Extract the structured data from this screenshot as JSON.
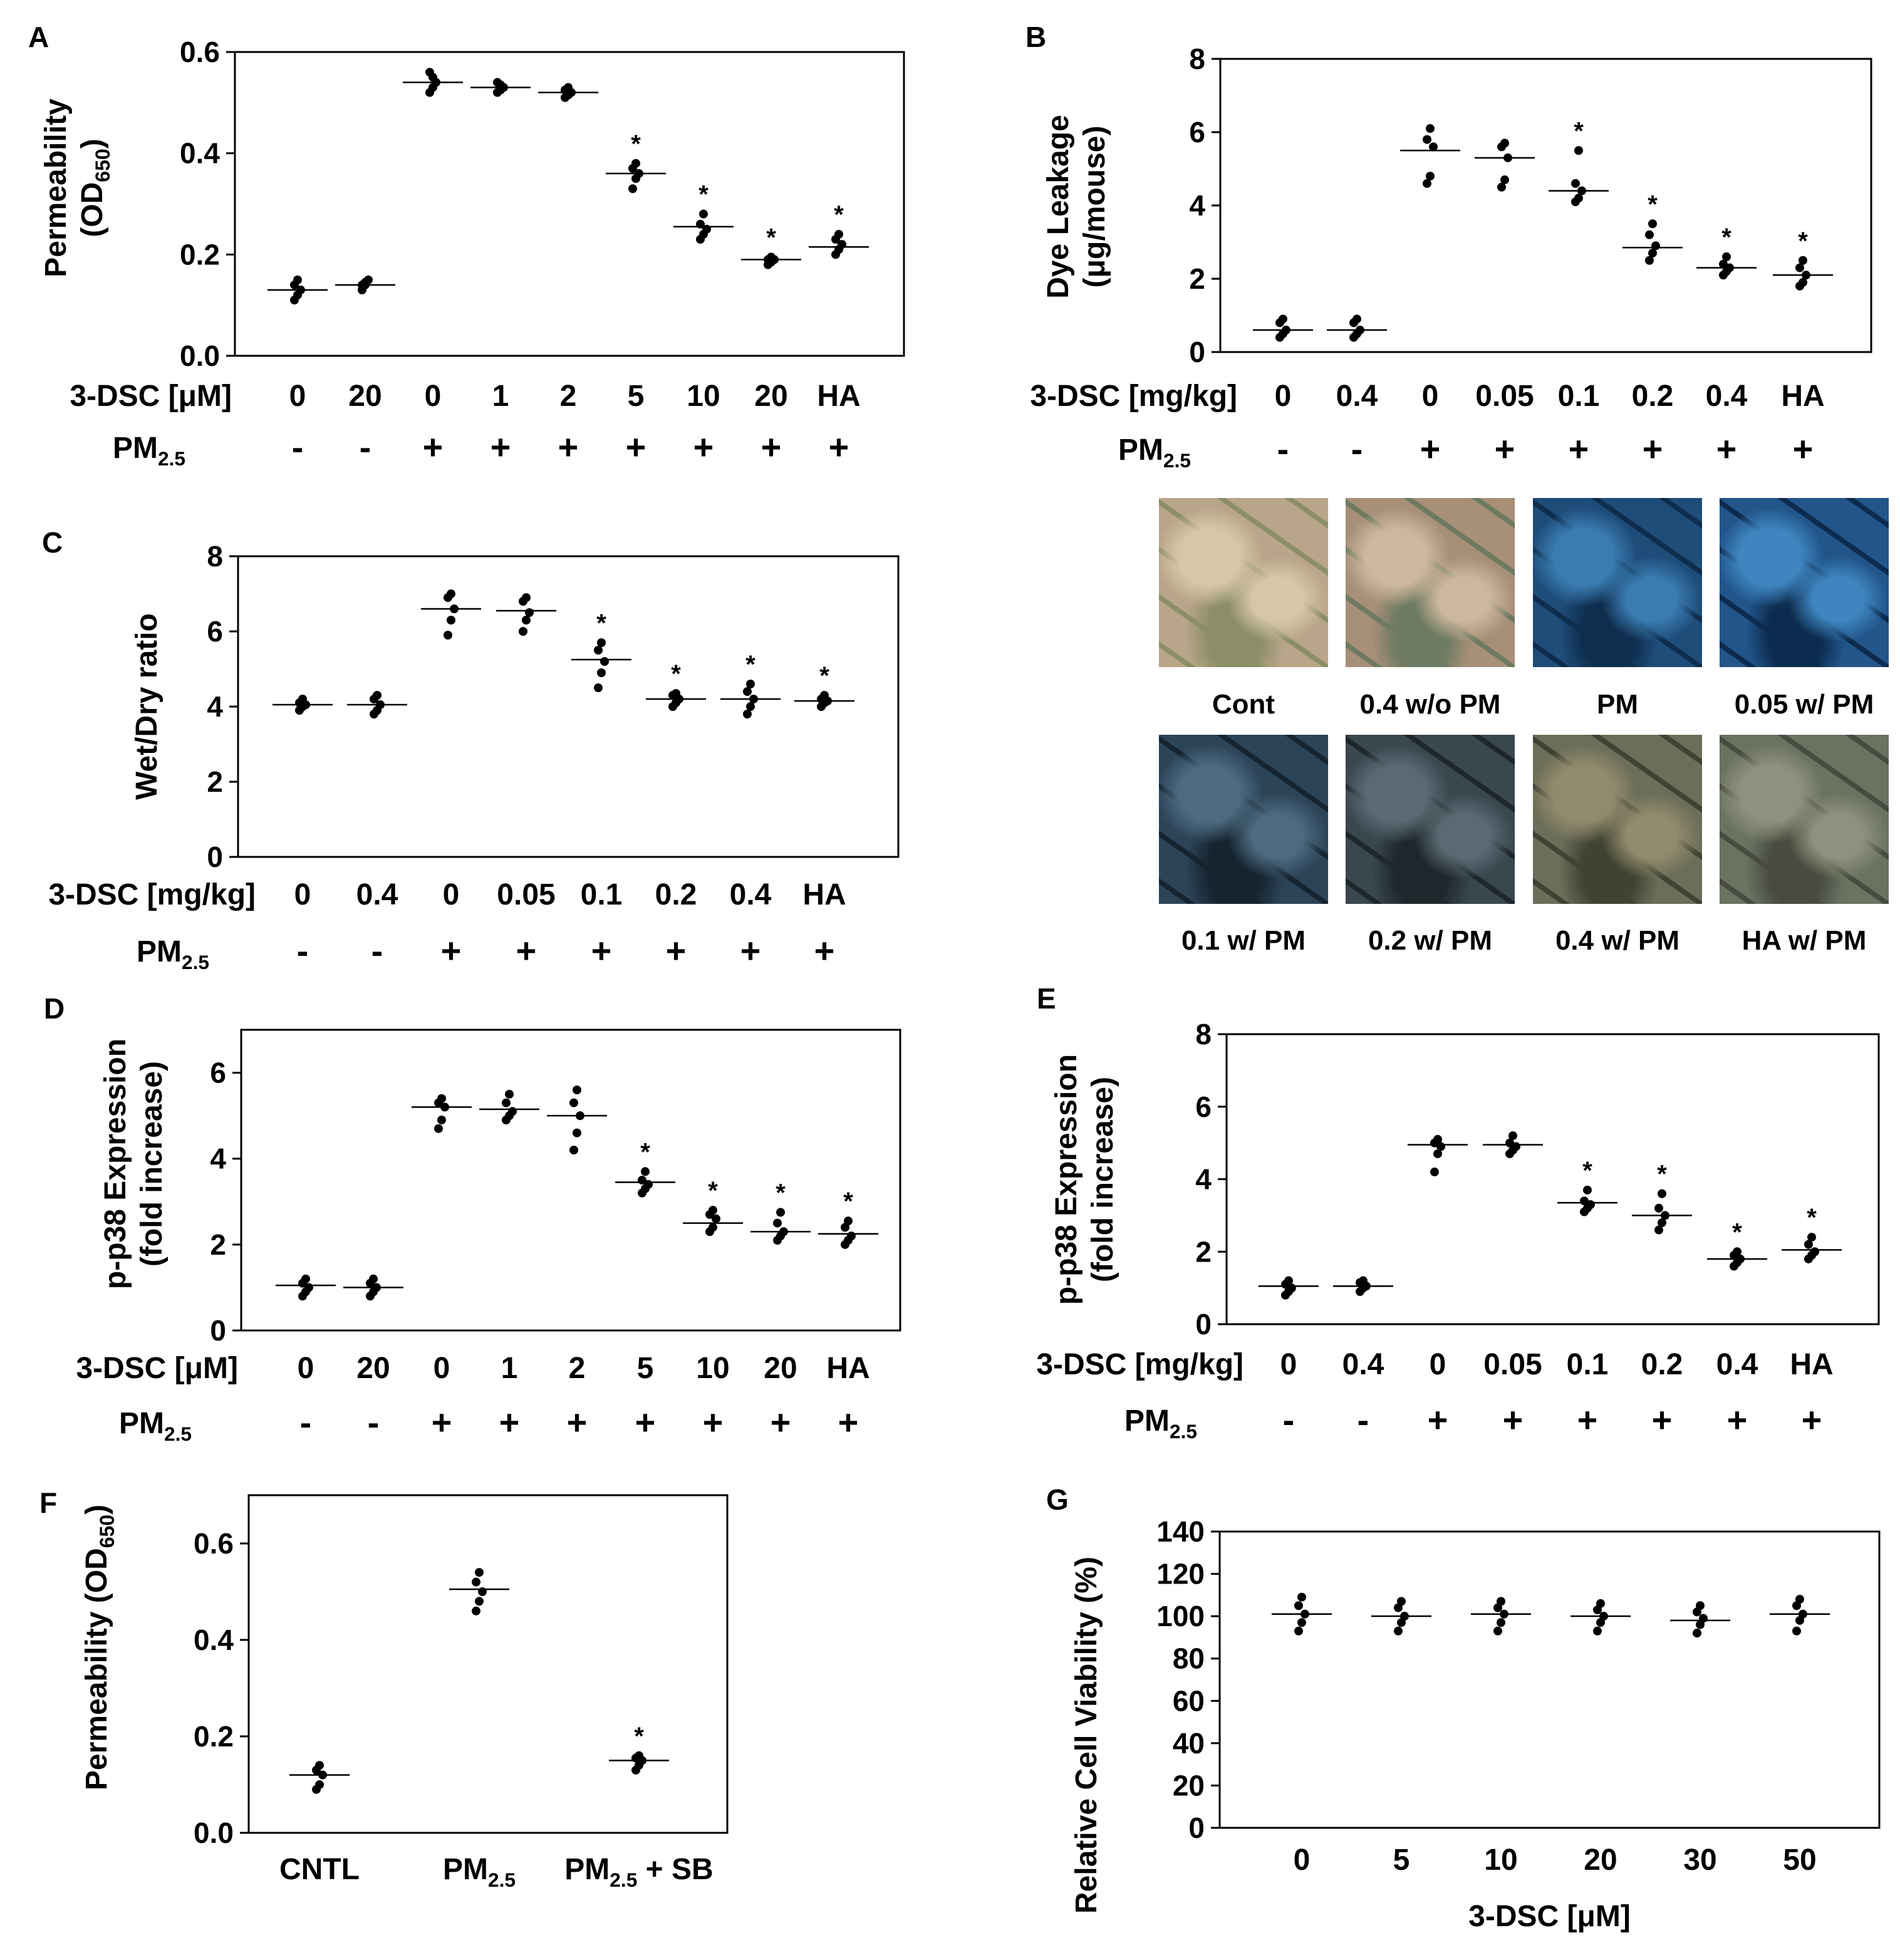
{
  "colors": {
    "ink": "#000000",
    "background": "#ffffff"
  },
  "chart_data": [
    {
      "panel": "A",
      "type": "scatter",
      "ylabel": [
        "Permeability",
        "(OD",
        "650",
        ")"
      ],
      "ylim": [
        0,
        0.6
      ],
      "yticks": [
        "0.0",
        "0.2",
        "0.4",
        "0.6"
      ],
      "ytick_values": [
        0,
        0.2,
        0.4,
        0.6
      ],
      "row_labels": [
        "3-DSC [μM]",
        "PM2.5"
      ],
      "categories": [
        "0",
        "20",
        "0",
        "1",
        "2",
        "5",
        "10",
        "20",
        "HA"
      ],
      "pm": [
        "-",
        "-",
        "+",
        "+",
        "+",
        "+",
        "+",
        "+",
        "+"
      ],
      "means": [
        0.13,
        0.14,
        0.54,
        0.53,
        0.52,
        0.36,
        0.255,
        0.19,
        0.215
      ],
      "points": [
        [
          0.11,
          0.12,
          0.13,
          0.14,
          0.15
        ],
        [
          0.13,
          0.14,
          0.15,
          0.14,
          0.145
        ],
        [
          0.52,
          0.53,
          0.54,
          0.56,
          0.55
        ],
        [
          0.52,
          0.525,
          0.53,
          0.54,
          0.535
        ],
        [
          0.51,
          0.515,
          0.52,
          0.525,
          0.53
        ],
        [
          0.33,
          0.35,
          0.36,
          0.37,
          0.38
        ],
        [
          0.23,
          0.24,
          0.25,
          0.26,
          0.28
        ],
        [
          0.18,
          0.185,
          0.19,
          0.19,
          0.195
        ],
        [
          0.2,
          0.21,
          0.22,
          0.23,
          0.24
        ]
      ],
      "stars": [
        false,
        false,
        false,
        false,
        false,
        true,
        true,
        true,
        true
      ],
      "star_symbol": "*"
    },
    {
      "panel": "B",
      "type": "scatter",
      "ylabel": [
        "Dye Leakage",
        "(μg/mouse)"
      ],
      "ylim": [
        0,
        8
      ],
      "yticks": [
        "0",
        "2",
        "4",
        "6",
        "8"
      ],
      "ytick_values": [
        0,
        2,
        4,
        6,
        8
      ],
      "row_labels": [
        "3-DSC [mg/kg]",
        "PM2.5"
      ],
      "categories": [
        "0",
        "0.4",
        "0",
        "0.05",
        "0.1",
        "0.2",
        "0.4",
        "HA"
      ],
      "pm": [
        "-",
        "-",
        "+",
        "+",
        "+",
        "+",
        "+",
        "+"
      ],
      "means": [
        0.6,
        0.6,
        5.5,
        5.3,
        4.4,
        2.85,
        2.3,
        2.1
      ],
      "points": [
        [
          0.4,
          0.5,
          0.6,
          0.8,
          0.9
        ],
        [
          0.4,
          0.5,
          0.6,
          0.8,
          0.9
        ],
        [
          4.6,
          4.8,
          5.6,
          5.8,
          6.1
        ],
        [
          4.5,
          4.7,
          5.3,
          5.6,
          5.7
        ],
        [
          4.1,
          4.2,
          4.4,
          4.6,
          5.5
        ],
        [
          2.5,
          2.7,
          2.9,
          3.2,
          3.5
        ],
        [
          2.1,
          2.2,
          2.3,
          2.4,
          2.6
        ],
        [
          1.8,
          1.9,
          2.1,
          2.3,
          2.5
        ]
      ],
      "stars": [
        false,
        false,
        false,
        false,
        true,
        true,
        true,
        true
      ],
      "star_symbol": "*"
    },
    {
      "panel": "C",
      "type": "scatter",
      "ylabel": [
        "Wet/Dry ratio"
      ],
      "ylim": [
        0,
        8
      ],
      "yticks": [
        "0",
        "2",
        "4",
        "6",
        "8"
      ],
      "ytick_values": [
        0,
        2,
        4,
        6,
        8
      ],
      "row_labels": [
        "3-DSC [mg/kg]",
        "PM2.5"
      ],
      "categories": [
        "0",
        "0.4",
        "0",
        "0.05",
        "0.1",
        "0.2",
        "0.4",
        "HA"
      ],
      "pm": [
        "-",
        "-",
        "+",
        "+",
        "+",
        "+",
        "+",
        "+"
      ],
      "means": [
        4.05,
        4.05,
        6.6,
        6.55,
        5.25,
        4.2,
        4.2,
        4.15
      ],
      "points": [
        [
          3.9,
          4.0,
          4.05,
          4.1,
          4.2
        ],
        [
          3.8,
          3.9,
          4.05,
          4.2,
          4.3
        ],
        [
          5.9,
          6.3,
          6.6,
          6.9,
          7.0
        ],
        [
          6.0,
          6.3,
          6.5,
          6.8,
          6.9
        ],
        [
          4.5,
          4.9,
          5.2,
          5.5,
          5.7
        ],
        [
          4.0,
          4.1,
          4.2,
          4.3,
          4.35
        ],
        [
          3.8,
          4.0,
          4.2,
          4.4,
          4.6
        ],
        [
          4.0,
          4.1,
          4.15,
          4.2,
          4.3
        ]
      ],
      "stars": [
        false,
        false,
        false,
        false,
        true,
        true,
        true,
        true
      ],
      "star_symbol": "*"
    },
    {
      "panel": "D",
      "type": "scatter",
      "ylabel": [
        "p-p38 Expression",
        "(fold increase)"
      ],
      "ylim": [
        0,
        7
      ],
      "yticks": [
        "0",
        "2",
        "4",
        "6"
      ],
      "ytick_values": [
        0,
        2,
        4,
        6
      ],
      "row_labels": [
        "3-DSC [μM]",
        "PM2.5"
      ],
      "categories": [
        "0",
        "20",
        "0",
        "1",
        "2",
        "5",
        "10",
        "20",
        "HA"
      ],
      "pm": [
        "-",
        "-",
        "+",
        "+",
        "+",
        "+",
        "+",
        "+",
        "+"
      ],
      "means": [
        1.05,
        1.0,
        5.2,
        5.15,
        5.0,
        3.45,
        2.5,
        2.3,
        2.25
      ],
      "points": [
        [
          0.8,
          0.9,
          1.0,
          1.1,
          1.2
        ],
        [
          0.8,
          0.9,
          1.0,
          1.1,
          1.2
        ],
        [
          4.7,
          4.9,
          5.2,
          5.3,
          5.4
        ],
        [
          4.9,
          5.0,
          5.1,
          5.3,
          5.5
        ],
        [
          4.2,
          4.6,
          5.0,
          5.3,
          5.6
        ],
        [
          3.2,
          3.3,
          3.4,
          3.5,
          3.7
        ],
        [
          2.3,
          2.4,
          2.6,
          2.7,
          2.8
        ],
        [
          2.1,
          2.2,
          2.3,
          2.5,
          2.75
        ],
        [
          2.0,
          2.1,
          2.2,
          2.4,
          2.55
        ]
      ],
      "stars": [
        false,
        false,
        false,
        false,
        false,
        true,
        true,
        true,
        true
      ],
      "star_symbol": "*"
    },
    {
      "panel": "E",
      "type": "scatter",
      "ylabel": [
        "p-p38 Expression",
        "(fold increase)"
      ],
      "ylim": [
        0,
        8
      ],
      "yticks": [
        "0",
        "2",
        "4",
        "6",
        "8"
      ],
      "ytick_values": [
        0,
        2,
        4,
        6,
        8
      ],
      "row_labels": [
        "3-DSC [mg/kg]",
        "PM2.5"
      ],
      "categories": [
        "0",
        "0.4",
        "0",
        "0.05",
        "0.1",
        "0.2",
        "0.4",
        "HA"
      ],
      "pm": [
        "-",
        "-",
        "+",
        "+",
        "+",
        "+",
        "+",
        "+"
      ],
      "means": [
        1.05,
        1.05,
        4.95,
        4.95,
        3.35,
        3.0,
        1.8,
        2.05
      ],
      "points": [
        [
          0.8,
          0.9,
          1.0,
          1.1,
          1.2
        ],
        [
          0.9,
          1.0,
          1.05,
          1.15,
          1.2
        ],
        [
          4.2,
          4.7,
          4.9,
          5.0,
          5.1
        ],
        [
          4.7,
          4.8,
          4.9,
          5.0,
          5.2
        ],
        [
          3.1,
          3.2,
          3.3,
          3.4,
          3.7
        ],
        [
          2.6,
          2.8,
          3.0,
          3.2,
          3.6
        ],
        [
          1.6,
          1.7,
          1.8,
          1.9,
          2.0
        ],
        [
          1.8,
          1.9,
          2.0,
          2.2,
          2.4
        ]
      ],
      "stars": [
        false,
        false,
        false,
        false,
        true,
        true,
        true,
        true
      ],
      "star_symbol": "*"
    },
    {
      "panel": "F",
      "type": "scatter",
      "ylabel": [
        "Permeability (OD",
        "650",
        ")"
      ],
      "ylim": [
        0,
        0.7
      ],
      "yticks": [
        "0.0",
        "0.2",
        "0.4",
        "0.6"
      ],
      "ytick_values": [
        0,
        0.2,
        0.4,
        0.6
      ],
      "categories": [
        "CNTL",
        "PM2.5",
        "PM2.5 + SB"
      ],
      "means": [
        0.12,
        0.505,
        0.15
      ],
      "points": [
        [
          0.09,
          0.1,
          0.12,
          0.13,
          0.14
        ],
        [
          0.46,
          0.48,
          0.5,
          0.52,
          0.54
        ],
        [
          0.13,
          0.14,
          0.15,
          0.155,
          0.16
        ]
      ],
      "stars": [
        false,
        false,
        true
      ],
      "star_symbol": "*"
    },
    {
      "panel": "G",
      "type": "scatter",
      "ylabel": [
        "Relative Cell Viability (%)"
      ],
      "xlabel": "3-DSC [μM]",
      "ylim": [
        0,
        140
      ],
      "yticks": [
        "0",
        "20",
        "40",
        "60",
        "80",
        "100",
        "120",
        "140"
      ],
      "ytick_values": [
        0,
        20,
        40,
        60,
        80,
        100,
        120,
        140
      ],
      "categories": [
        "0",
        "5",
        "10",
        "20",
        "30",
        "50"
      ],
      "means": [
        101,
        100,
        101,
        100,
        98,
        101
      ],
      "points": [
        [
          93,
          97,
          101,
          105,
          109
        ],
        [
          93,
          97,
          100,
          104,
          107
        ],
        [
          93,
          97,
          101,
          104,
          107
        ],
        [
          93,
          97,
          100,
          103,
          106
        ],
        [
          92,
          96,
          99,
          102,
          105
        ],
        [
          93,
          98,
          101,
          105,
          108
        ]
      ],
      "stars": [
        false,
        false,
        false,
        false,
        false,
        false
      ],
      "star_symbol": "*"
    }
  ],
  "panel_letters": {
    "A": "A",
    "B": "B",
    "C": "C",
    "D": "D",
    "E": "E",
    "F": "F",
    "G": "G"
  },
  "photos": [
    {
      "label": "Cont",
      "colors": [
        "#b9a58a",
        "#8c8e6a",
        "#d7c7a6"
      ]
    },
    {
      "label": "0.4 w/o PM",
      "colors": [
        "#a78f78",
        "#6e7a62",
        "#cdb89d"
      ]
    },
    {
      "label": "PM",
      "colors": [
        "#1f4d7a",
        "#0f2d4d",
        "#3a7bb0"
      ]
    },
    {
      "label": "0.05 w/ PM",
      "colors": [
        "#22558a",
        "#0d2b4e",
        "#3f86c0"
      ]
    },
    {
      "label": "0.1 w/ PM",
      "colors": [
        "#2c4458",
        "#16242f",
        "#4d6a80"
      ]
    },
    {
      "label": "0.2 w/ PM",
      "colors": [
        "#39474f",
        "#1f272c",
        "#5a6a72"
      ]
    },
    {
      "label": "0.4 w/ PM",
      "colors": [
        "#6b6e58",
        "#3f4334",
        "#928a6d"
      ]
    },
    {
      "label": "HA w/ PM",
      "colors": [
        "#6c7262",
        "#474c3f",
        "#8d917e"
      ]
    }
  ]
}
